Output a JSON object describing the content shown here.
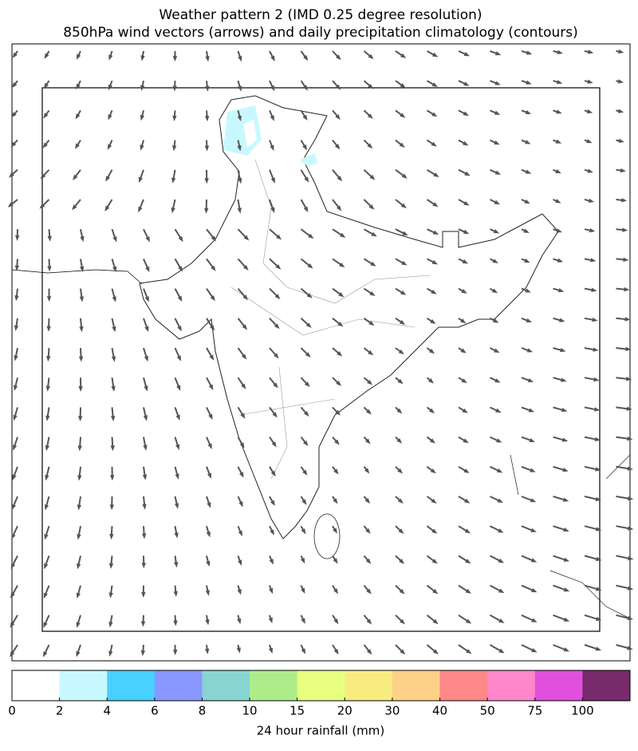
{
  "chart_data": {
    "type": "map",
    "title": "Weather pattern 2 (IMD 0.25 degree resolution)",
    "subtitle": "850hPa wind vectors (arrows) and daily precipitation climatology (contours)",
    "colorbar": {
      "label": "24 hour rainfall (mm)",
      "boundaries": [
        0,
        2,
        4,
        6,
        8,
        10,
        15,
        20,
        30,
        40,
        50,
        75,
        100
      ],
      "colors": [
        "#ffffff",
        "#c8f8ff",
        "#48d0ff",
        "#8898ff",
        "#88d4d0",
        "#aeec8a",
        "#e8ff80",
        "#f8ec80",
        "#ffd088",
        "#ff8888",
        "#ff88cc",
        "#e050dc",
        "#782a6c"
      ]
    }
  }
}
